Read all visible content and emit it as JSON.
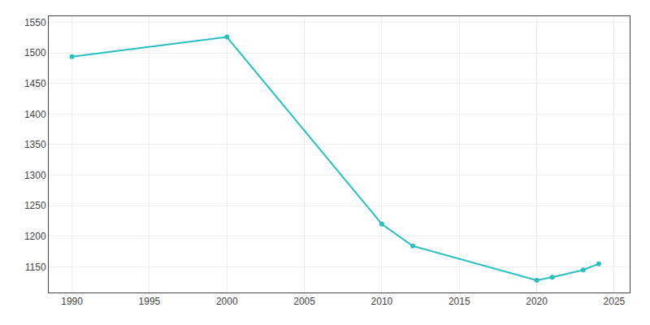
{
  "chart_data": {
    "type": "line",
    "x": [
      1990,
      2000,
      2010,
      2012,
      2020,
      2021,
      2023,
      2024
    ],
    "values": [
      1494,
      1526,
      1220,
      1184,
      1128,
      1133,
      1145,
      1155
    ],
    "color": "#2abfbf",
    "marker": "circle",
    "xlim": [
      1988.5,
      2026
    ],
    "ylim": [
      1108,
      1560
    ],
    "xticks": [
      1990,
      1995,
      2000,
      2005,
      2010,
      2015,
      2020,
      2025
    ],
    "yticks": [
      1150,
      1200,
      1250,
      1300,
      1350,
      1400,
      1450,
      1500,
      1550
    ],
    "grid": true
  }
}
